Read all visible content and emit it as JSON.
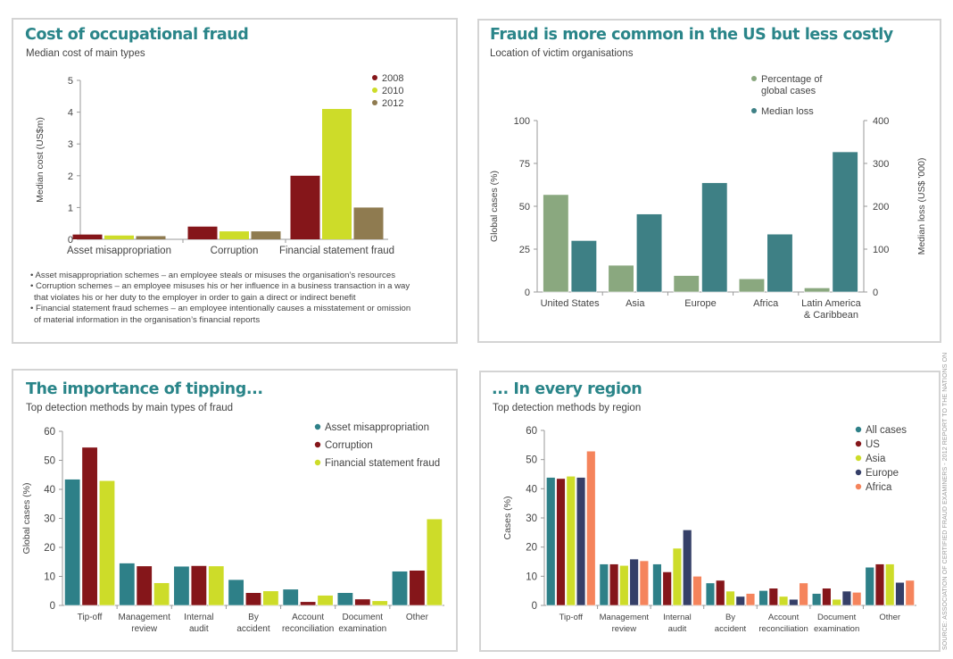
{
  "source_note": "SOURCE: ASSOCIATION OF CERTIFIED FRAUD EXAMINERS - 2012 REPORT TO THE NATIONS ON",
  "colors": {
    "title": "#2a8589",
    "maroon": "#85161a",
    "lime": "#cddc29",
    "olive_brown": "#8f7b50",
    "sage": "#8aa87f",
    "teal": "#3e8085",
    "teal2": "#2e8088",
    "navy": "#353f68",
    "salmon": "#f5845c"
  },
  "chart_data": [
    {
      "id": "cost",
      "type": "bar",
      "title": "Cost of occupational fraud",
      "subtitle": "Median cost of main types",
      "xlabel": "",
      "ylabel": "Median cost (US$m)",
      "ylim": [
        0,
        5
      ],
      "yticks": [
        0,
        1,
        2,
        3,
        4,
        5
      ],
      "categories": [
        "Asset misappropriation",
        "Corruption",
        "Financial statement fraud"
      ],
      "series": [
        {
          "name": "2008",
          "color": "#85161a",
          "values": [
            0.15,
            0.4,
            2.0
          ]
        },
        {
          "name": "2010",
          "color": "#cddc29",
          "values": [
            0.12,
            0.25,
            4.1
          ]
        },
        {
          "name": "2012",
          "color": "#8f7b50",
          "values": [
            0.1,
            0.25,
            1.0
          ]
        }
      ],
      "legend_position": "top-right",
      "grid": false,
      "notes": [
        "• Asset misappropriation schemes – an employee steals or misuses the organisation’s resources",
        "• Corruption schemes – an employee misuses his or her influence in a business transaction in a way",
        "  that violates his or her duty to the employer in order to gain a direct or indirect benefit",
        "• Financial statement fraud schemes – an employee intentionally causes a misstatement or omission",
        "  of material information in the organisation’s financial reports"
      ]
    },
    {
      "id": "location",
      "type": "bar",
      "title": "Fraud is more common in the US but less costly",
      "subtitle": "Location of victim organisations",
      "xlabel": "",
      "ylabel": "Global cases (%)",
      "ylabel_right": "Median loss (US$ '000)",
      "ylim": [
        0,
        100
      ],
      "ylim_right": [
        0,
        400
      ],
      "yticks": [
        0,
        25,
        50,
        75,
        100
      ],
      "yticks_right": [
        0,
        100,
        200,
        300,
        400
      ],
      "categories": [
        "United States",
        "Asia",
        "Europe",
        "Africa",
        "Latin America & Caribbean"
      ],
      "category_lines": [
        [
          "United States"
        ],
        [
          "Asia"
        ],
        [
          "Europe"
        ],
        [
          "Africa"
        ],
        [
          "Latin America",
          "& Caribbean"
        ]
      ],
      "series": [
        {
          "name": "Percentage of global cases",
          "legend_lines": [
            "Percentage of",
            "global cases"
          ],
          "axis": "left",
          "color": "#8aa87f",
          "values": [
            56.8,
            15.6,
            9.6,
            7.7,
            2.4
          ]
        },
        {
          "name": "Median loss",
          "legend_lines": [
            "Median loss"
          ],
          "axis": "right",
          "color": "#3e8085",
          "values": [
            120,
            182,
            255,
            135,
            327
          ]
        }
      ],
      "legend_position": "top-right",
      "grid": false
    },
    {
      "id": "tipping",
      "type": "bar",
      "title": "The importance of tipping...",
      "subtitle": "Top detection methods by main types of fraud",
      "xlabel": "",
      "ylabel": "Global cases (%)",
      "ylim": [
        0,
        60
      ],
      "yticks": [
        0,
        10,
        20,
        30,
        40,
        50,
        60
      ],
      "categories": [
        "Tip-off",
        "Management review",
        "Internal audit",
        "By accident",
        "Account reconciliation",
        "Document examination",
        "Other"
      ],
      "category_lines": [
        [
          "Tip-off"
        ],
        [
          "Management",
          "review"
        ],
        [
          "Internal",
          "audit"
        ],
        [
          "By",
          "accident"
        ],
        [
          "Account",
          "reconciliation"
        ],
        [
          "Document",
          "examination"
        ],
        [
          "Other"
        ]
      ],
      "series": [
        {
          "name": "Asset misappropriation",
          "color": "#2e8088",
          "values": [
            43.5,
            14.6,
            13.5,
            8.9,
            5.6,
            4.4,
            11.8
          ]
        },
        {
          "name": "Corruption",
          "color": "#85161a",
          "values": [
            54.5,
            13.6,
            13.7,
            4.4,
            1.3,
            2.2,
            12.1
          ]
        },
        {
          "name": "Financial statement fraud",
          "color": "#cddc29",
          "values": [
            43.0,
            7.8,
            13.6,
            5.0,
            3.5,
            1.6,
            29.8
          ]
        }
      ],
      "legend_position": "top-right",
      "grid": false
    },
    {
      "id": "region",
      "type": "bar",
      "title": "... In every region",
      "subtitle": "Top detection methods by region",
      "xlabel": "",
      "ylabel": "Cases (%)",
      "ylim": [
        0,
        60
      ],
      "yticks": [
        0,
        10,
        20,
        30,
        40,
        50,
        60
      ],
      "categories": [
        "Tip-off",
        "Management review",
        "Internal audit",
        "By accident",
        "Account reconciliation",
        "Document examination",
        "Other"
      ],
      "category_lines": [
        [
          "Tip-off"
        ],
        [
          "Management",
          "review"
        ],
        [
          "Internal",
          "audit"
        ],
        [
          "By",
          "accident"
        ],
        [
          "Account",
          "reconciliation"
        ],
        [
          "Document",
          "examination"
        ],
        [
          "Other"
        ]
      ],
      "series": [
        {
          "name": "All cases",
          "color": "#2e8088",
          "values": [
            43.9,
            14.2,
            14.2,
            7.7,
            5.1,
            4.1,
            13.1
          ]
        },
        {
          "name": "US",
          "color": "#85161a",
          "values": [
            43.5,
            14.2,
            11.5,
            8.6,
            5.9,
            5.9,
            14.2
          ]
        },
        {
          "name": "Asia",
          "color": "#cddc29",
          "values": [
            44.3,
            13.7,
            19.6,
            4.9,
            3.1,
            2.1,
            14.2
          ]
        },
        {
          "name": "Europe",
          "color": "#353f68",
          "values": [
            43.9,
            15.9,
            25.9,
            3.1,
            2.1,
            4.9,
            7.9
          ]
        },
        {
          "name": "Africa",
          "color": "#f5845c",
          "values": [
            52.9,
            15.3,
            10.0,
            4.1,
            7.7,
            4.5,
            8.6
          ]
        }
      ],
      "legend_position": "top-right",
      "grid": false
    }
  ]
}
